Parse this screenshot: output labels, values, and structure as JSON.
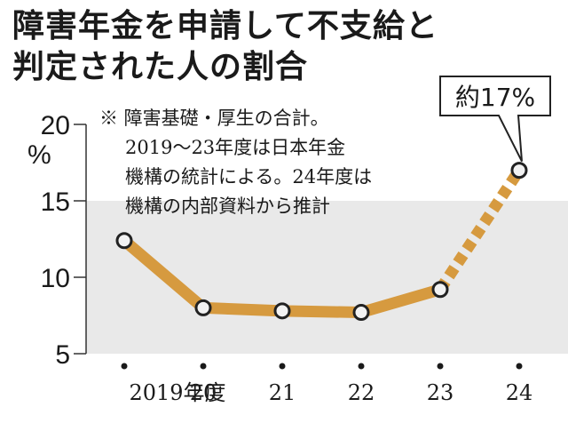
{
  "title_line1": "障害年金を申請して不支給と",
  "title_line2": "判定された人の割合",
  "note_lines": [
    "※ 障害基礎・厚生の合計。",
    "2019〜23年度は日本年金",
    "機構の統計による。24年度は",
    "機構の内部資料から推計"
  ],
  "callout_label": "約17%",
  "y_unit": "%",
  "colors": {
    "line": "#d69a3f",
    "band": "#e9e9e9",
    "marker_fill": "#f2f2f2",
    "marker_stroke": "#222222"
  },
  "chart_data": {
    "type": "line",
    "categories": [
      "2019年度",
      "20",
      "21",
      "22",
      "23",
      "24"
    ],
    "values": [
      12.4,
      8.0,
      7.8,
      7.7,
      9.2,
      17.0
    ],
    "estimated_from_index": 4,
    "ylim": [
      5,
      20
    ],
    "yticks": [
      5,
      10,
      15,
      20
    ],
    "grid_bands": [
      [
        10,
        15
      ],
      [
        5,
        10
      ]
    ],
    "grid_band_style": "alternating",
    "legend": "none"
  }
}
